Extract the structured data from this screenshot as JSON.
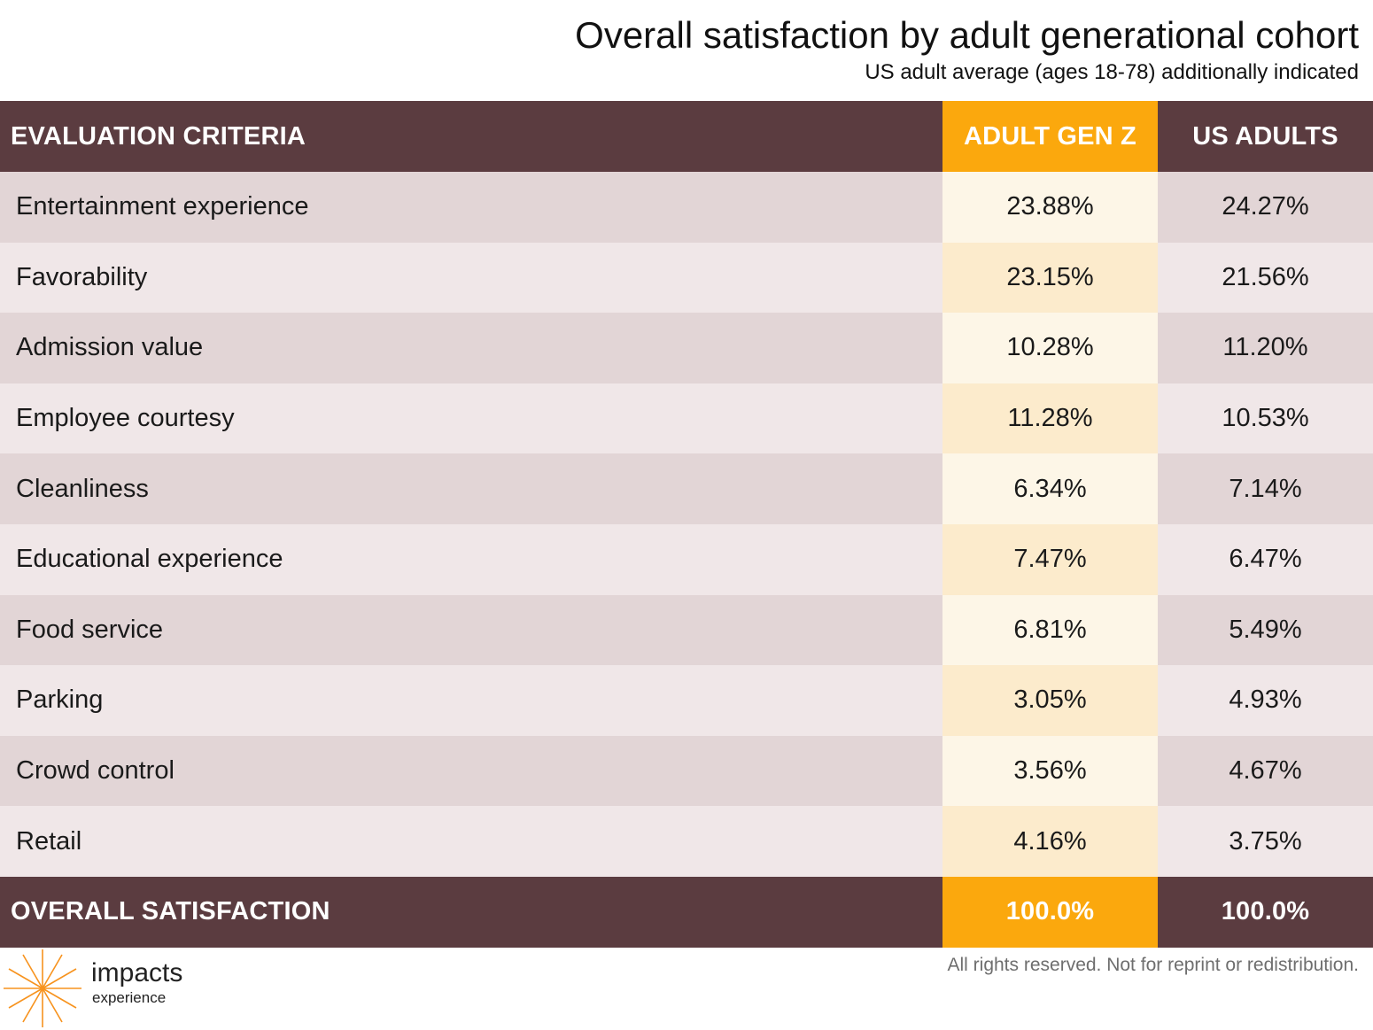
{
  "title": "Overall satisfaction by adult generational cohort",
  "subtitle": "US adult average (ages 18-78) additionally indicated",
  "colors": {
    "header_bg": "#5b3c40",
    "accent_orange": "#fba80d",
    "row_dark": "#e2d5d6",
    "row_light": "#f0e7e8",
    "orange_dark_row": "#fdf6e7",
    "orange_light_row": "#fcebcc",
    "logo_orange": "#f7931e"
  },
  "chart_data": {
    "type": "table",
    "title": "Overall satisfaction by adult generational cohort",
    "subtitle": "US adult average (ages 18-78) additionally indicated",
    "columns": [
      "EVALUATION CRITERIA",
      "ADULT GEN Z",
      "US ADULTS"
    ],
    "rows": [
      {
        "label": "Entertainment experience",
        "genz": "23.88%",
        "us": "24.27%"
      },
      {
        "label": "Favorability",
        "genz": "23.15%",
        "us": "21.56%"
      },
      {
        "label": "Admission value",
        "genz": "10.28%",
        "us": "11.20%"
      },
      {
        "label": "Employee courtesy",
        "genz": "11.28%",
        "us": "10.53%"
      },
      {
        "label": "Cleanliness",
        "genz": "6.34%",
        "us": "7.14%"
      },
      {
        "label": "Educational experience",
        "genz": "7.47%",
        "us": "6.47%"
      },
      {
        "label": "Food service",
        "genz": "6.81%",
        "us": "5.49%"
      },
      {
        "label": "Parking",
        "genz": "3.05%",
        "us": "4.93%"
      },
      {
        "label": "Crowd control",
        "genz": "3.56%",
        "us": "4.67%"
      },
      {
        "label": "Retail",
        "genz": "4.16%",
        "us": "3.75%"
      }
    ],
    "total": {
      "label": "OVERALL SATISFACTION",
      "genz": "100.0%",
      "us": "100.0%"
    }
  },
  "watermark": {
    "line1": "impacts",
    "line2": "experience"
  },
  "logo": {
    "name": "impacts",
    "sub": "experience",
    "icon": "starburst-icon"
  },
  "footer_note": "All rights reserved. Not for reprint or redistribution."
}
